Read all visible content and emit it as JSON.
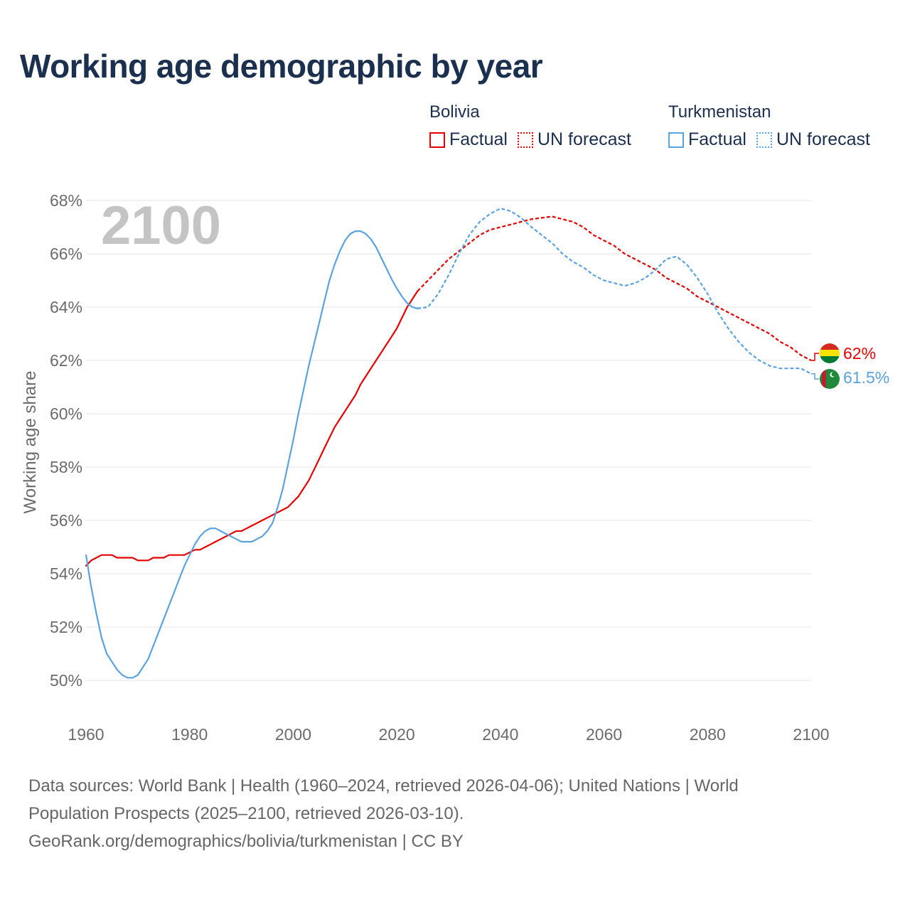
{
  "title": "Working age demographic by year",
  "colors": {
    "bolivia": "#e60000",
    "turkmenistan": "#5ba3e0",
    "grid": "#e6e6e6",
    "axis_text": "#6b6b6b",
    "year_label": "#c4c4c4"
  },
  "legend": {
    "bolivia": {
      "country": "Bolivia",
      "factual": "Factual",
      "forecast": "UN forecast"
    },
    "turkmenistan": {
      "country": "Turkmenistan",
      "factual": "Factual",
      "forecast": "UN forecast"
    }
  },
  "chart_data": {
    "type": "line",
    "title": "Working age demographic by year",
    "xlabel": "",
    "ylabel": "Working age share",
    "xlim": [
      1960,
      2100
    ],
    "ylim": [
      49,
      68.5
    ],
    "x_ticks": [
      "1960",
      "1980",
      "2000",
      "2020",
      "2040",
      "2060",
      "2080",
      "2100"
    ],
    "y_ticks": [
      "50%",
      "52%",
      "54%",
      "56%",
      "58%",
      "60%",
      "62%",
      "64%",
      "66%",
      "68%"
    ],
    "year_label": "2100",
    "factual_range": [
      1960,
      2024
    ],
    "forecast_range": [
      2024,
      2100
    ],
    "series": [
      {
        "name": "Bolivia",
        "end_label": "62%",
        "points": [
          [
            1960,
            54.3
          ],
          [
            1961,
            54.5
          ],
          [
            1962,
            54.6
          ],
          [
            1963,
            54.7
          ],
          [
            1964,
            54.7
          ],
          [
            1965,
            54.7
          ],
          [
            1966,
            54.6
          ],
          [
            1967,
            54.6
          ],
          [
            1968,
            54.6
          ],
          [
            1969,
            54.6
          ],
          [
            1970,
            54.5
          ],
          [
            1971,
            54.5
          ],
          [
            1972,
            54.5
          ],
          [
            1973,
            54.6
          ],
          [
            1974,
            54.6
          ],
          [
            1975,
            54.6
          ],
          [
            1976,
            54.7
          ],
          [
            1977,
            54.7
          ],
          [
            1978,
            54.7
          ],
          [
            1979,
            54.7
          ],
          [
            1980,
            54.8
          ],
          [
            1981,
            54.9
          ],
          [
            1982,
            54.9
          ],
          [
            1983,
            55.0
          ],
          [
            1984,
            55.1
          ],
          [
            1985,
            55.2
          ],
          [
            1986,
            55.3
          ],
          [
            1987,
            55.4
          ],
          [
            1988,
            55.5
          ],
          [
            1989,
            55.6
          ],
          [
            1990,
            55.6
          ],
          [
            1991,
            55.7
          ],
          [
            1992,
            55.8
          ],
          [
            1993,
            55.9
          ],
          [
            1994,
            56.0
          ],
          [
            1995,
            56.1
          ],
          [
            1996,
            56.2
          ],
          [
            1997,
            56.3
          ],
          [
            1998,
            56.4
          ],
          [
            1999,
            56.5
          ],
          [
            2000,
            56.7
          ],
          [
            2001,
            56.9
          ],
          [
            2002,
            57.2
          ],
          [
            2003,
            57.5
          ],
          [
            2004,
            57.9
          ],
          [
            2005,
            58.3
          ],
          [
            2006,
            58.7
          ],
          [
            2007,
            59.1
          ],
          [
            2008,
            59.5
          ],
          [
            2009,
            59.8
          ],
          [
            2010,
            60.1
          ],
          [
            2011,
            60.4
          ],
          [
            2012,
            60.7
          ],
          [
            2013,
            61.1
          ],
          [
            2014,
            61.4
          ],
          [
            2015,
            61.7
          ],
          [
            2016,
            62.0
          ],
          [
            2017,
            62.3
          ],
          [
            2018,
            62.6
          ],
          [
            2019,
            62.9
          ],
          [
            2020,
            63.2
          ],
          [
            2021,
            63.6
          ],
          [
            2022,
            64.0
          ],
          [
            2023,
            64.3
          ],
          [
            2024,
            64.6
          ],
          [
            2026,
            65.0
          ],
          [
            2028,
            65.4
          ],
          [
            2030,
            65.8
          ],
          [
            2032,
            66.1
          ],
          [
            2034,
            66.4
          ],
          [
            2036,
            66.7
          ],
          [
            2038,
            66.9
          ],
          [
            2040,
            67.0
          ],
          [
            2042,
            67.1
          ],
          [
            2044,
            67.2
          ],
          [
            2046,
            67.3
          ],
          [
            2048,
            67.35
          ],
          [
            2050,
            67.4
          ],
          [
            2052,
            67.3
          ],
          [
            2054,
            67.2
          ],
          [
            2056,
            67.0
          ],
          [
            2058,
            66.7
          ],
          [
            2060,
            66.5
          ],
          [
            2062,
            66.3
          ],
          [
            2064,
            66.0
          ],
          [
            2066,
            65.8
          ],
          [
            2068,
            65.6
          ],
          [
            2070,
            65.4
          ],
          [
            2072,
            65.1
          ],
          [
            2074,
            64.9
          ],
          [
            2076,
            64.7
          ],
          [
            2078,
            64.4
          ],
          [
            2080,
            64.2
          ],
          [
            2082,
            64.0
          ],
          [
            2084,
            63.8
          ],
          [
            2086,
            63.6
          ],
          [
            2088,
            63.4
          ],
          [
            2090,
            63.2
          ],
          [
            2092,
            63.0
          ],
          [
            2094,
            62.7
          ],
          [
            2096,
            62.5
          ],
          [
            2098,
            62.2
          ],
          [
            2100,
            62.0
          ]
        ]
      },
      {
        "name": "Turkmenistan",
        "end_label": "61.5%",
        "points": [
          [
            1960,
            54.7
          ],
          [
            1961,
            53.5
          ],
          [
            1962,
            52.5
          ],
          [
            1963,
            51.6
          ],
          [
            1964,
            51.0
          ],
          [
            1965,
            50.7
          ],
          [
            1966,
            50.4
          ],
          [
            1967,
            50.2
          ],
          [
            1968,
            50.1
          ],
          [
            1969,
            50.1
          ],
          [
            1970,
            50.2
          ],
          [
            1971,
            50.5
          ],
          [
            1972,
            50.8
          ],
          [
            1973,
            51.3
          ],
          [
            1974,
            51.8
          ],
          [
            1975,
            52.3
          ],
          [
            1976,
            52.8
          ],
          [
            1977,
            53.3
          ],
          [
            1978,
            53.8
          ],
          [
            1979,
            54.3
          ],
          [
            1980,
            54.7
          ],
          [
            1981,
            55.1
          ],
          [
            1982,
            55.4
          ],
          [
            1983,
            55.6
          ],
          [
            1984,
            55.7
          ],
          [
            1985,
            55.7
          ],
          [
            1986,
            55.6
          ],
          [
            1987,
            55.5
          ],
          [
            1988,
            55.4
          ],
          [
            1989,
            55.3
          ],
          [
            1990,
            55.2
          ],
          [
            1991,
            55.2
          ],
          [
            1992,
            55.2
          ],
          [
            1993,
            55.3
          ],
          [
            1994,
            55.4
          ],
          [
            1995,
            55.6
          ],
          [
            1996,
            55.9
          ],
          [
            1997,
            56.5
          ],
          [
            1998,
            57.2
          ],
          [
            1999,
            58.1
          ],
          [
            2000,
            59.0
          ],
          [
            2001,
            60.0
          ],
          [
            2002,
            60.9
          ],
          [
            2003,
            61.8
          ],
          [
            2004,
            62.6
          ],
          [
            2005,
            63.4
          ],
          [
            2006,
            64.2
          ],
          [
            2007,
            65.0
          ],
          [
            2008,
            65.6
          ],
          [
            2009,
            66.1
          ],
          [
            2010,
            66.5
          ],
          [
            2011,
            66.75
          ],
          [
            2012,
            66.85
          ],
          [
            2013,
            66.85
          ],
          [
            2014,
            66.75
          ],
          [
            2015,
            66.55
          ],
          [
            2016,
            66.25
          ],
          [
            2017,
            65.85
          ],
          [
            2018,
            65.45
          ],
          [
            2019,
            65.05
          ],
          [
            2020,
            64.7
          ],
          [
            2021,
            64.4
          ],
          [
            2022,
            64.15
          ],
          [
            2023,
            64.0
          ],
          [
            2024,
            63.95
          ],
          [
            2026,
            64.0
          ],
          [
            2028,
            64.5
          ],
          [
            2030,
            65.2
          ],
          [
            2032,
            66.0
          ],
          [
            2034,
            66.7
          ],
          [
            2036,
            67.2
          ],
          [
            2038,
            67.5
          ],
          [
            2040,
            67.7
          ],
          [
            2042,
            67.6
          ],
          [
            2044,
            67.35
          ],
          [
            2046,
            67.0
          ],
          [
            2048,
            66.7
          ],
          [
            2050,
            66.4
          ],
          [
            2052,
            66.0
          ],
          [
            2054,
            65.7
          ],
          [
            2056,
            65.5
          ],
          [
            2058,
            65.2
          ],
          [
            2060,
            65.0
          ],
          [
            2062,
            64.9
          ],
          [
            2064,
            64.8
          ],
          [
            2066,
            64.9
          ],
          [
            2068,
            65.1
          ],
          [
            2070,
            65.4
          ],
          [
            2072,
            65.8
          ],
          [
            2074,
            65.9
          ],
          [
            2076,
            65.6
          ],
          [
            2078,
            65.1
          ],
          [
            2080,
            64.5
          ],
          [
            2082,
            63.8
          ],
          [
            2084,
            63.2
          ],
          [
            2086,
            62.7
          ],
          [
            2088,
            62.3
          ],
          [
            2090,
            62.0
          ],
          [
            2092,
            61.8
          ],
          [
            2094,
            61.7
          ],
          [
            2096,
            61.7
          ],
          [
            2098,
            61.7
          ],
          [
            2100,
            61.5
          ]
        ]
      }
    ]
  },
  "footer": {
    "line1": "Data sources: World Bank | Health (1960–2024, retrieved 2026-04-06); United Nations | World",
    "line2": "Population Prospects (2025–2100, retrieved 2026-03-10).",
    "line3": "GeoRank.org/demographics/bolivia/turkmenistan | CC BY"
  }
}
